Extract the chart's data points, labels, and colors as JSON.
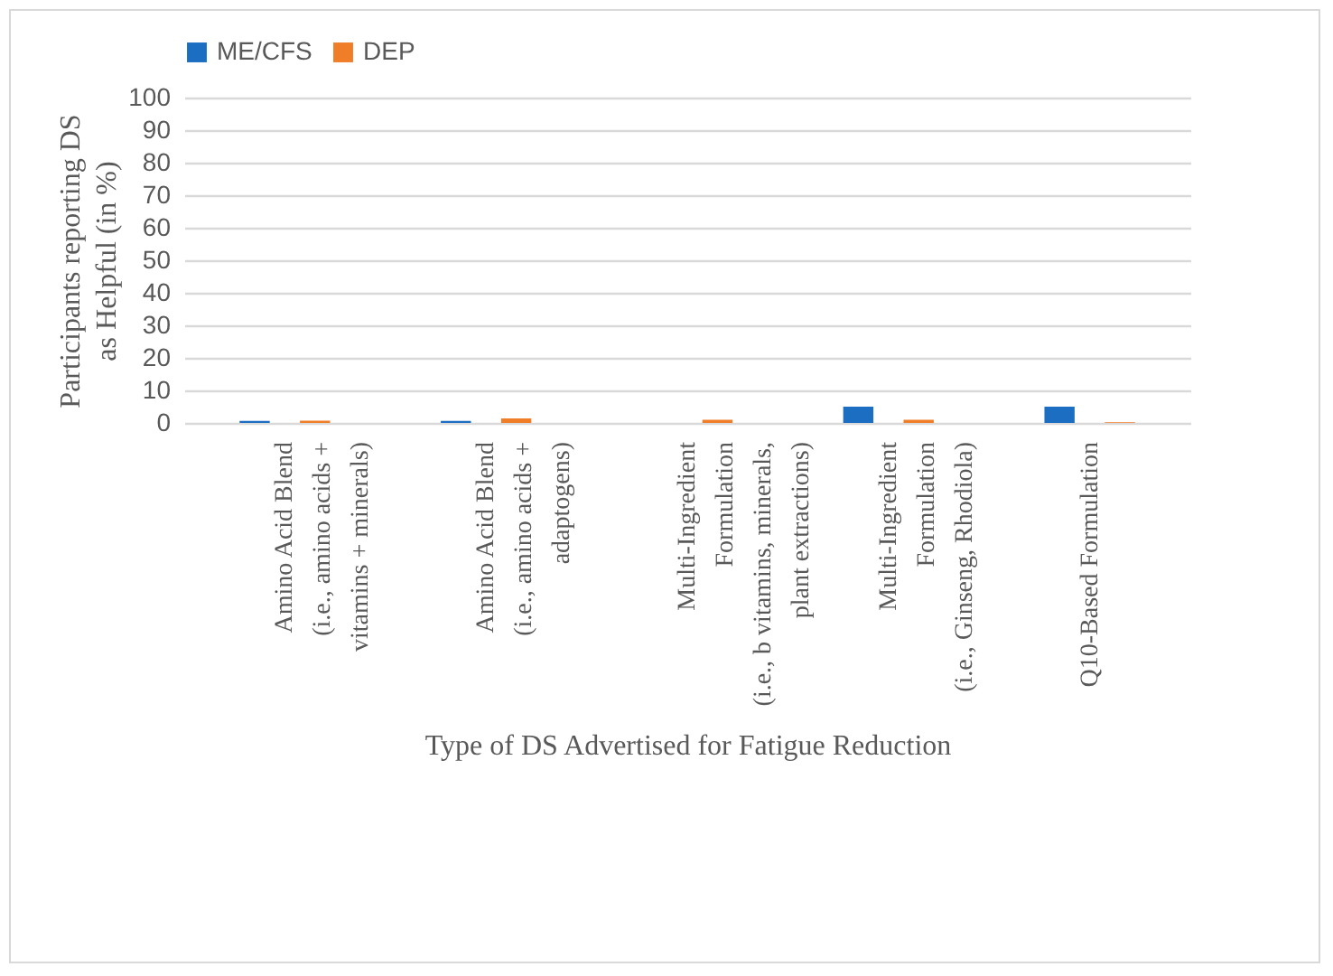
{
  "chart_data": {
    "type": "bar",
    "xlabel": "Type of DS Advertised for Fatigue Reduction",
    "ylabel": "Participants reporting  DS as Helpful (in %)",
    "categories": [
      "Amino Acid Blend\n(i.e., amino acids +\nvitamins + minerals)",
      "Amino Acid Blend\n(i.e., amino acids +\nadaptogens)",
      "Multi-Ingredient\nFormulation\n(i.e., b vitamins, minerals,\nplant extractions)",
      "Multi-Ingredient\nFormulation\n(i.e., Ginseng, Rhodiola)",
      "Q10-Based Formulation"
    ],
    "series": [
      {
        "name": "ME/CFS",
        "color": "#1b6ec2",
        "values": [
          0.6,
          0.6,
          0,
          5,
          5
        ]
      },
      {
        "name": "DEP",
        "color": "#f07d28",
        "values": [
          0.7,
          1.4,
          1,
          1,
          0.2
        ]
      }
    ],
    "ylim": [
      0,
      100
    ],
    "yticks": [
      0,
      10,
      20,
      30,
      40,
      50,
      60,
      70,
      80,
      90,
      100
    ],
    "grid": "y",
    "legend": "top"
  }
}
